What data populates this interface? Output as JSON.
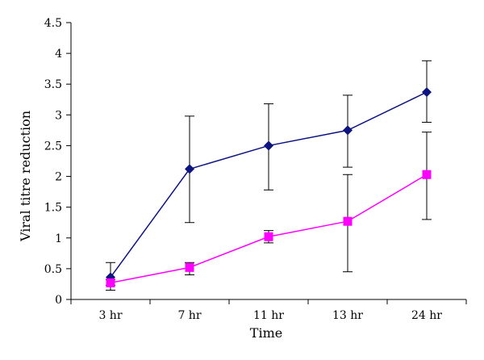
{
  "chart_data": {
    "type": "line",
    "title": "",
    "xlabel": "Time",
    "ylabel": "Viral titre reduction",
    "categories": [
      "3 hr",
      "7 hr",
      "11 hr",
      "13 hr",
      "24 hr"
    ],
    "ylim": [
      0,
      4.5
    ],
    "yticks": [
      0,
      0.5,
      1,
      1.5,
      2,
      2.5,
      3,
      3.5,
      4,
      4.5
    ],
    "ytick_labels": [
      "0",
      "0.5",
      "1",
      "1.5",
      "2",
      "2.5",
      "3",
      "3.5",
      "4",
      "4.5"
    ],
    "grid": false,
    "legend": "none",
    "series": [
      {
        "color": "#0d1480",
        "marker": "diamond",
        "values": [
          0.36,
          2.12,
          2.5,
          2.75,
          3.37
        ],
        "error_low": [
          0.15,
          1.25,
          1.78,
          2.15,
          2.88
        ],
        "error_high": [
          0.6,
          2.98,
          3.18,
          3.32,
          3.88
        ]
      },
      {
        "color": "#ff00ff",
        "marker": "square",
        "values": [
          0.27,
          0.52,
          1.02,
          1.27,
          2.03
        ],
        "error_low": [
          0.23,
          0.4,
          0.92,
          0.45,
          1.3
        ],
        "error_high": [
          0.32,
          0.6,
          1.12,
          2.03,
          2.72
        ]
      }
    ]
  }
}
